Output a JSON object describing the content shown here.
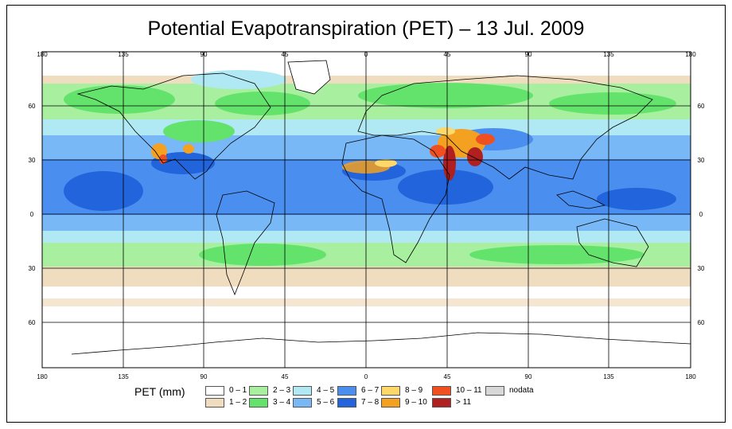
{
  "title": "Potential Evapotranspiration (PET) – 13 Jul. 2009",
  "axis": {
    "lon_ticks": [
      "180",
      "135",
      "90",
      "45",
      "0",
      "45",
      "90",
      "135",
      "180"
    ],
    "lat_ticks_left": [
      "60",
      "30",
      "0",
      "30",
      "60"
    ],
    "lat_ticks_right": [
      "60",
      "30",
      "0",
      "30",
      "60"
    ]
  },
  "colors": {
    "c0": "#ffffff",
    "c1": "#f0dcbe",
    "c2": "#a8f0a0",
    "c3": "#64e36c",
    "c4": "#b0e8f4",
    "c5": "#78b8f6",
    "c6": "#4a8ef0",
    "c7": "#2264dc",
    "c8": "#ffd86a",
    "c9": "#f4a020",
    "c10": "#f05020",
    "c11": "#b02020",
    "nodata": "#d8d8d8"
  },
  "legend": {
    "label": "PET (mm)",
    "items": [
      {
        "label": "0 – 1",
        "color": "#ffffff"
      },
      {
        "label": "1 – 2",
        "color": "#f0dcbe"
      },
      {
        "label": "2 – 3",
        "color": "#a8f0a0"
      },
      {
        "label": "3 – 4",
        "color": "#64e36c"
      },
      {
        "label": "4 – 5",
        "color": "#b0e8f4"
      },
      {
        "label": "5 – 6",
        "color": "#78b8f6"
      },
      {
        "label": "6 – 7",
        "color": "#4a8ef0"
      },
      {
        "label": "7 – 8",
        "color": "#2264dc"
      },
      {
        "label": "8 – 9",
        "color": "#ffd86a"
      },
      {
        "label": "9 – 10",
        "color": "#f4a020"
      },
      {
        "label": "10 – 11",
        "color": "#f05020"
      },
      {
        "label": "> 11",
        "color": "#b02020"
      },
      {
        "label": "nodata",
        "color": "#d8d8d8"
      }
    ]
  }
}
